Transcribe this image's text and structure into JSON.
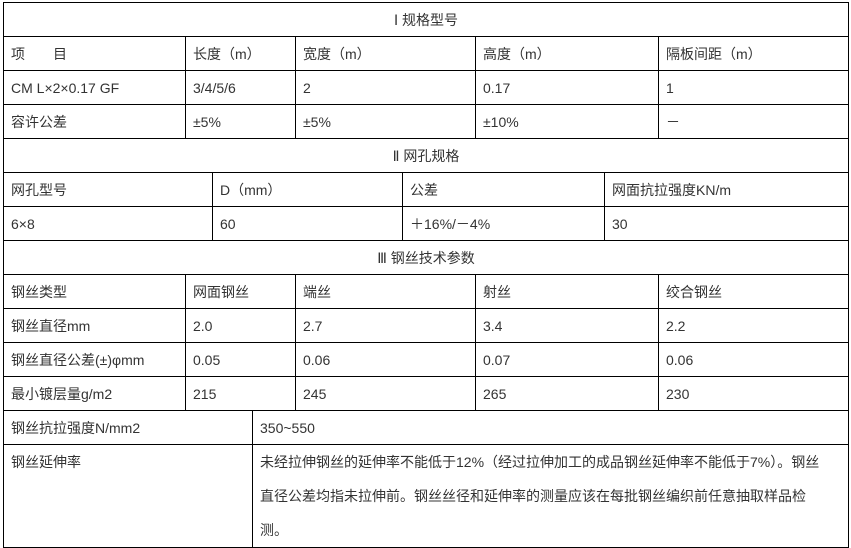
{
  "section1": {
    "title": "Ⅰ 规格型号",
    "headers": [
      "项　　目",
      "长度（m）",
      "宽度（m）",
      "高度（m）",
      "隔板间距（m）"
    ],
    "rows": [
      [
        "CM L×2×0.17 GF",
        "3/4/5/6",
        "2",
        "0.17",
        "1"
      ],
      [
        "容许公差",
        "±5%",
        "±5%",
        "±10%",
        "－"
      ]
    ]
  },
  "section2": {
    "title": "Ⅱ 网孔规格",
    "headers": [
      "网孔型号",
      "D（mm）",
      "公差",
      "网面抗拉强度KN/m"
    ],
    "rows": [
      [
        "6×8",
        "60",
        "＋16%/－4%",
        "30"
      ]
    ]
  },
  "section3": {
    "title": "Ⅲ 钢丝技术参数",
    "headers": [
      "钢丝类型",
      "网面钢丝",
      "端丝",
      "射丝",
      "绞合钢丝"
    ],
    "rows": [
      [
        "钢丝直径mm",
        "2.0",
        "2.7",
        "3.4",
        "2.2"
      ],
      [
        "钢丝直径公差(±)φmm",
        "0.05",
        "0.06",
        "0.07",
        "0.06"
      ],
      [
        "最小镀层量g/m2",
        "215",
        "245",
        "265",
        "230"
      ]
    ]
  },
  "section4": {
    "rows": [
      [
        "钢丝抗拉强度N/mm2",
        "350~550"
      ],
      [
        "钢丝延伸率",
        "未经拉伸钢丝的延伸率不能低于12%（经过拉伸加工的成品钢丝延伸率不能低于7%）。钢丝直径公差均指未拉伸前。钢丝丝径和延伸率的测量应该在每批钢丝编织前任意抽取样品检测。"
      ]
    ]
  }
}
